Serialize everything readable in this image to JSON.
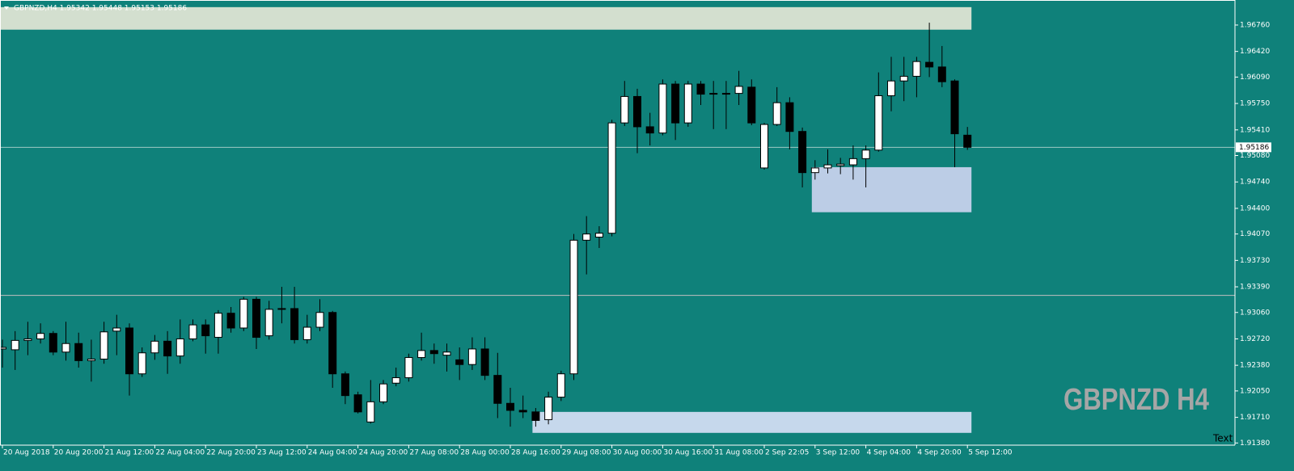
{
  "chart_data": {
    "type": "candlestick",
    "title": "GBPNZD,H4  1.95342 1.95448 1.95153 1.95186",
    "watermark": "GBPNZD H4",
    "corner_text": "Text",
    "background": "#0f817a",
    "up_color": "#ffffff",
    "down_color": "#000000",
    "price_label": 1.95186,
    "hlines": [
      1.9328
    ],
    "zones": [
      {
        "low": 1.967,
        "high": 1.9699,
        "start": 0,
        "color": "#d3dfcf"
      },
      {
        "low": 1.9435,
        "high": 1.9493,
        "start": 64,
        "color": "#bccde6"
      },
      {
        "low": 1.9151,
        "high": 1.9178,
        "start": 42,
        "color": "#c6d8ec"
      }
    ],
    "categories": [
      "20 Aug 2018",
      null,
      null,
      null,
      "20 Aug 20:00",
      null,
      null,
      null,
      "21 Aug 12:00",
      null,
      null,
      null,
      "22 Aug 04:00",
      null,
      null,
      null,
      "22 Aug 20:00",
      null,
      null,
      null,
      "23 Aug 12:00",
      null,
      null,
      null,
      "24 Aug 04:00",
      null,
      null,
      null,
      "24 Aug 20:00",
      null,
      null,
      null,
      "27 Aug 08:00",
      null,
      null,
      null,
      "28 Aug 00:00",
      null,
      null,
      null,
      "28 Aug 16:00",
      null,
      null,
      null,
      "29 Aug 08:00",
      null,
      null,
      null,
      "30 Aug 00:00",
      null,
      null,
      null,
      "30 Aug 16:00",
      null,
      null,
      null,
      "31 Aug 08:00",
      null,
      null,
      null,
      "2 Sep 22:05",
      null,
      null,
      null,
      "3 Sep 12:00",
      null,
      null,
      null,
      "4 Sep 04:00",
      null,
      null,
      null,
      "4 Sep 20:00",
      null,
      null,
      null,
      "5 Sep 12:00"
    ],
    "open": [
      1.9259,
      1.9258,
      1.927,
      1.9272,
      1.9279,
      1.9255,
      1.9266,
      1.9244,
      1.9246,
      1.9282,
      1.9286,
      1.9227,
      1.9254,
      1.9269,
      1.925,
      1.9272,
      1.929,
      1.9274,
      1.9305,
      1.9286,
      1.9323,
      1.9276,
      1.9311,
      1.9311,
      1.9271,
      1.9287,
      1.9306,
      1.9227,
      1.92,
      1.9165,
      1.9191,
      1.9215,
      1.9222,
      1.9248,
      1.9257,
      1.9251,
      1.9245,
      1.9239,
      1.9259,
      1.9225,
      1.9189,
      1.918,
      1.9178,
      1.9168,
      1.9197,
      1.9227,
      1.9399,
      1.9403,
      1.9408,
      1.955,
      1.9584,
      1.9545,
      1.9537,
      1.96,
      1.955,
      1.96,
      1.9588,
      1.9588,
      1.9588,
      1.9596,
      1.9492,
      1.9548,
      1.9576,
      1.9539,
      1.9486,
      1.9492,
      1.9495,
      1.9496,
      1.9504,
      1.9515,
      1.9585,
      1.9604,
      1.961,
      1.9628,
      1.9622,
      1.9604,
      1.95342
    ],
    "high": [
      1.9271,
      1.9282,
      1.9294,
      1.9292,
      1.9282,
      1.9294,
      1.928,
      1.9271,
      1.9294,
      1.9303,
      1.9292,
      1.9261,
      1.9277,
      1.9282,
      1.9297,
      1.9297,
      1.9297,
      1.9309,
      1.9313,
      1.9326,
      1.9326,
      1.9321,
      1.9339,
      1.9339,
      1.9303,
      1.9323,
      1.9308,
      1.923,
      1.9204,
      1.9219,
      1.9219,
      1.9235,
      1.9253,
      1.928,
      1.9266,
      1.9266,
      1.9261,
      1.9274,
      1.9274,
      1.9254,
      1.9209,
      1.9199,
      1.9183,
      1.9204,
      1.9231,
      1.9407,
      1.943,
      1.9417,
      1.9554,
      1.9604,
      1.9594,
      1.9563,
      1.9606,
      1.9604,
      1.9604,
      1.9604,
      1.9604,
      1.9604,
      1.9617,
      1.9606,
      1.955,
      1.9596,
      1.9583,
      1.9544,
      1.9502,
      1.9516,
      1.9505,
      1.9521,
      1.9521,
      1.9615,
      1.9635,
      1.9635,
      1.9635,
      1.9679,
      1.9649,
      1.9606,
      1.95448
    ],
    "low": [
      1.9235,
      1.9232,
      1.9251,
      1.9266,
      1.9251,
      1.9244,
      1.9235,
      1.9217,
      1.924,
      1.9251,
      1.9199,
      1.9223,
      1.9245,
      1.9227,
      1.924,
      1.9269,
      1.9253,
      1.9253,
      1.928,
      1.9282,
      1.9259,
      1.9271,
      1.9292,
      1.9266,
      1.9266,
      1.9282,
      1.9209,
      1.9188,
      1.9176,
      1.9163,
      1.9188,
      1.9211,
      1.9217,
      1.9244,
      1.924,
      1.923,
      1.9219,
      1.9232,
      1.9219,
      1.917,
      1.9159,
      1.917,
      1.9159,
      1.9162,
      1.9192,
      1.9219,
      1.9355,
      1.9389,
      1.9404,
      1.9546,
      1.9511,
      1.9521,
      1.9534,
      1.9528,
      1.9545,
      1.9573,
      1.9542,
      1.9542,
      1.9573,
      1.9547,
      1.949,
      1.9546,
      1.9516,
      1.9467,
      1.9477,
      1.9485,
      1.9484,
      1.9477,
      1.9467,
      1.9513,
      1.9565,
      1.9578,
      1.9583,
      1.9609,
      1.9596,
      1.9493,
      1.95153
    ],
    "close": [
      1.9261,
      1.927,
      1.9272,
      1.9279,
      1.9255,
      1.9266,
      1.9244,
      1.9246,
      1.9281,
      1.9286,
      1.9227,
      1.9254,
      1.9269,
      1.925,
      1.9272,
      1.929,
      1.9276,
      1.9305,
      1.9286,
      1.9323,
      1.9274,
      1.931,
      1.931,
      1.9271,
      1.9287,
      1.9306,
      1.9227,
      1.9199,
      1.9178,
      1.9191,
      1.9214,
      1.9222,
      1.9248,
      1.9257,
      1.9253,
      1.9255,
      1.9239,
      1.9259,
      1.9225,
      1.9189,
      1.918,
      1.9178,
      1.9167,
      1.9197,
      1.9227,
      1.9399,
      1.9407,
      1.9408,
      1.955,
      1.9584,
      1.9545,
      1.9537,
      1.96,
      1.955,
      1.96,
      1.9587,
      1.9587,
      1.9587,
      1.9597,
      1.955,
      1.9548,
      1.9576,
      1.9539,
      1.9486,
      1.9492,
      1.9496,
      1.9497,
      1.9504,
      1.9515,
      1.9585,
      1.9604,
      1.961,
      1.9629,
      1.9622,
      1.9603,
      1.9536,
      1.95186
    ],
    "ylim": [
      1.91352,
      1.97082
    ],
    "yticks": [
      {
        "value": 1.9676,
        "label": "1.96760"
      },
      {
        "value": 1.9642,
        "label": "1.96420"
      },
      {
        "value": 1.9609,
        "label": "1.96090"
      },
      {
        "value": 1.9575,
        "label": "1.95750"
      },
      {
        "value": 1.9541,
        "label": "1.95410"
      },
      {
        "value": 1.9508,
        "label": "1.95080"
      },
      {
        "value": 1.9474,
        "label": "1.94740"
      },
      {
        "value": 1.944,
        "label": "1.94400"
      },
      {
        "value": 1.9407,
        "label": "1.94070"
      },
      {
        "value": 1.9373,
        "label": "1.93730"
      },
      {
        "value": 1.9339,
        "label": "1.93390"
      },
      {
        "value": 1.9306,
        "label": "1.93060"
      },
      {
        "value": 1.9272,
        "label": "1.92720"
      },
      {
        "value": 1.9238,
        "label": "1.92380"
      },
      {
        "value": 1.9205,
        "label": "1.92050"
      },
      {
        "value": 1.9171,
        "label": "1.91710"
      },
      {
        "value": 1.9138,
        "label": "1.91380"
      }
    ]
  }
}
